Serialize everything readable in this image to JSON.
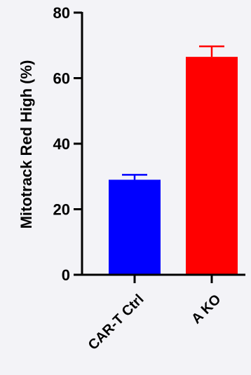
{
  "chart_data": {
    "type": "bar",
    "title": "",
    "xlabel": "",
    "ylabel": "Mitotrack Red High (%)",
    "categories": [
      "CAR-T Ctrl",
      "A KO"
    ],
    "values": [
      29,
      66.5
    ],
    "errors": [
      1.5,
      3.2
    ],
    "ylim": [
      0,
      80
    ],
    "yticks": [
      0,
      20,
      40,
      60,
      80
    ],
    "ytick_labels": [
      "0",
      "20",
      "40",
      "60",
      "80"
    ],
    "colors": [
      "#0000ff",
      "#ff0000"
    ],
    "grid": false,
    "legend": "none"
  }
}
